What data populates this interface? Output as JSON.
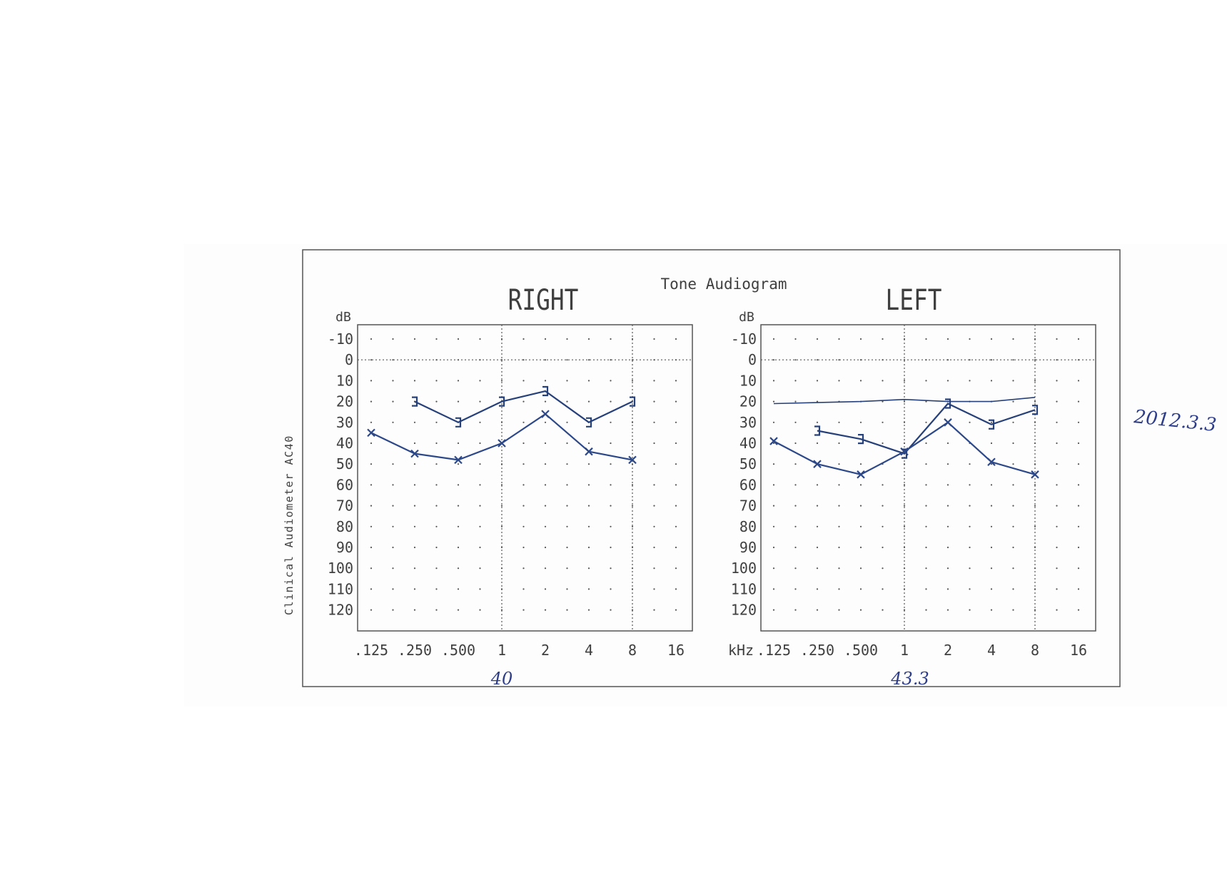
{
  "title": "Tone Audiogram",
  "device_label": "Clinical Audiometer AC40",
  "chart_data": [
    {
      "type": "line",
      "title": "RIGHT",
      "ylabel": "dB",
      "xlabel": "",
      "y_ticks": [
        "-10",
        "0",
        "10",
        "20",
        "30",
        "40",
        "50",
        "60",
        "70",
        "80",
        "90",
        "100",
        "110",
        "120"
      ],
      "ylim": [
        -10,
        120
      ],
      "y_inverted": true,
      "x_ticks": [
        ".125",
        ".250",
        ".500",
        "1",
        "2",
        "4",
        "8",
        "16"
      ],
      "x_scale": "log2",
      "grid": "dotted",
      "series": [
        {
          "marker": "bracket",
          "color": "#26407a",
          "points": [
            [
              0.25,
              20
            ],
            [
              0.5,
              30
            ],
            [
              1,
              20
            ],
            [
              2,
              15
            ],
            [
              4,
              30
            ],
            [
              8,
              20
            ]
          ]
        },
        {
          "marker": "x",
          "color": "#2c4888",
          "points": [
            [
              0.125,
              35
            ],
            [
              0.25,
              45
            ],
            [
              0.5,
              48
            ],
            [
              1,
              40
            ],
            [
              2,
              26
            ],
            [
              4,
              44
            ],
            [
              8,
              48
            ]
          ]
        }
      ],
      "handwritten_note": "40"
    },
    {
      "type": "line",
      "title": "LEFT",
      "ylabel": "dB",
      "xlabel": "kHz",
      "y_ticks": [
        "-10",
        "0",
        "10",
        "20",
        "30",
        "40",
        "50",
        "60",
        "70",
        "80",
        "90",
        "100",
        "110",
        "120"
      ],
      "ylim": [
        -10,
        120
      ],
      "y_inverted": true,
      "x_ticks": [
        ".125",
        ".250",
        ".500",
        "1",
        "2",
        "4",
        "8",
        "16"
      ],
      "x_scale": "log2",
      "grid": "dotted",
      "series": [
        {
          "marker": "bracket",
          "color": "#26407a",
          "points": [
            [
              0.25,
              34
            ],
            [
              0.5,
              38
            ],
            [
              1,
              45
            ],
            [
              2,
              21
            ],
            [
              4,
              31
            ],
            [
              8,
              24
            ]
          ]
        },
        {
          "marker": "x",
          "color": "#2c4888",
          "points": [
            [
              0.125,
              39
            ],
            [
              0.25,
              50
            ],
            [
              0.5,
              55
            ],
            [
              1,
              44
            ],
            [
              2,
              30
            ],
            [
              4,
              49
            ],
            [
              8,
              55
            ]
          ]
        },
        {
          "marker": "none",
          "color": "#26407a",
          "points": [
            [
              0.125,
              21
            ],
            [
              0.5,
              20
            ],
            [
              1,
              19
            ],
            [
              2,
              20
            ],
            [
              4,
              20
            ],
            [
              8,
              18
            ]
          ]
        }
      ],
      "handwritten_note": "43.3"
    }
  ],
  "margin_notes": [
    "2012.3.3"
  ],
  "colors": {
    "ink": "#3f3f3f",
    "pen": "#26407a",
    "border": "#555555"
  }
}
